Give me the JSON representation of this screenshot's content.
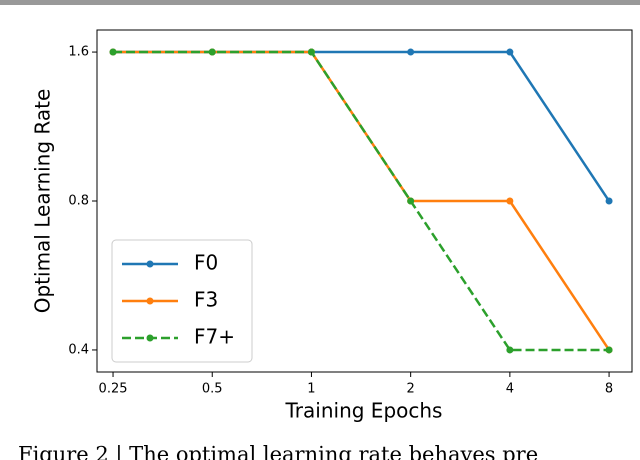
{
  "chart_data": {
    "type": "line",
    "xlabel": "Training Epochs",
    "ylabel": "Optimal Learning Rate",
    "x": [
      0.25,
      0.5,
      1,
      2,
      4,
      8
    ],
    "series": [
      {
        "name": "F0",
        "color": "#1f77b4",
        "linestyle": "solid",
        "values": [
          1.6,
          1.6,
          1.6,
          1.6,
          1.6,
          0.8
        ]
      },
      {
        "name": "F3",
        "color": "#ff7f0e",
        "linestyle": "solid",
        "values": [
          1.6,
          1.6,
          1.6,
          0.8,
          0.8,
          0.4
        ]
      },
      {
        "name": "F7+",
        "color": "#2ca02c",
        "linestyle": "dashed",
        "values": [
          1.6,
          1.6,
          1.6,
          0.8,
          0.4,
          0.4
        ]
      }
    ],
    "xscale": "log",
    "yscale": "log",
    "xlim": [
      0.2235,
      9.39
    ],
    "xticks": [
      0.25,
      0.5,
      1,
      2,
      4,
      8
    ],
    "ylim": [
      0.361,
      1.773
    ],
    "yticks": [
      0.4,
      0.8,
      1.6
    ],
    "grid": false,
    "legend": "lower left",
    "caption": "Figure 2 | The optimal learning rate behaves pre"
  }
}
